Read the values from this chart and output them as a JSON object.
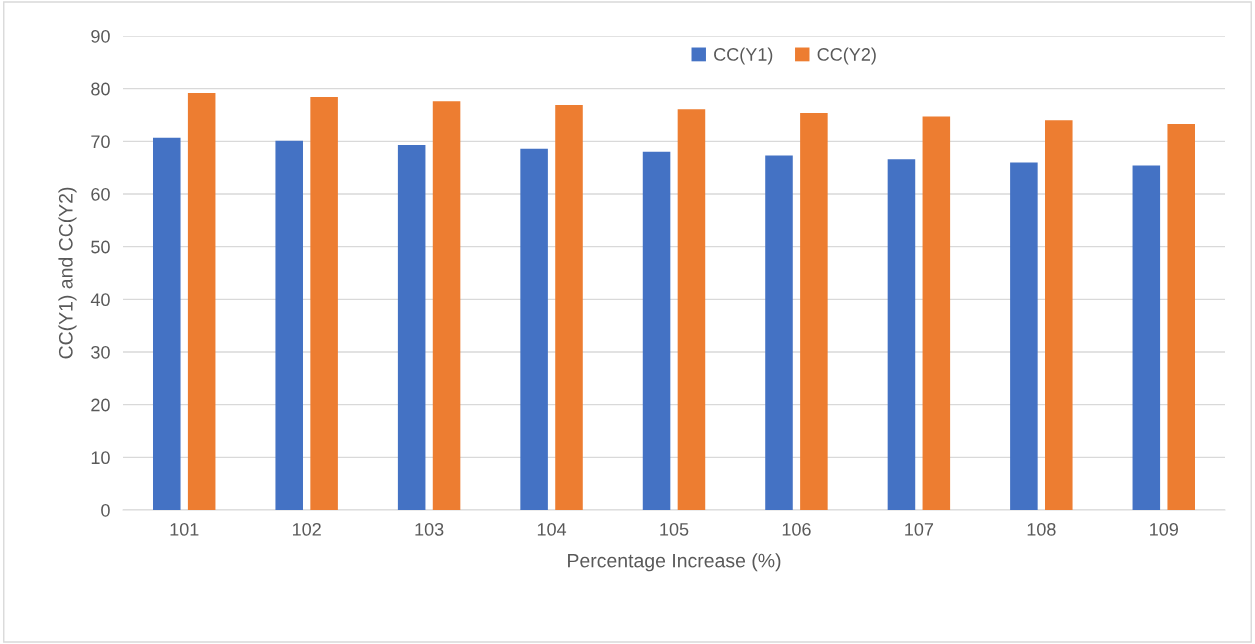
{
  "chart_data": {
    "type": "bar",
    "xlabel": "Percentage Increase (%)",
    "ylabel": "CC(Y1) and CC(Y2)",
    "categories": [
      "101",
      "102",
      "103",
      "104",
      "105",
      "106",
      "107",
      "108",
      "109"
    ],
    "series": [
      {
        "name": "CC(Y1)",
        "color": "#4472c4",
        "values": [
          70.7,
          70.1,
          69.3,
          68.6,
          68.0,
          67.3,
          66.6,
          66.0,
          65.4
        ]
      },
      {
        "name": "CC(Y2)",
        "color": "#ed7d31",
        "values": [
          79.2,
          78.4,
          77.6,
          76.9,
          76.1,
          75.4,
          74.7,
          74.0,
          73.3
        ]
      }
    ],
    "ylim": [
      0,
      90
    ],
    "yticks": [
      0,
      10,
      20,
      30,
      40,
      50,
      60,
      70,
      80,
      90
    ],
    "grid": "y",
    "legend": "top"
  }
}
